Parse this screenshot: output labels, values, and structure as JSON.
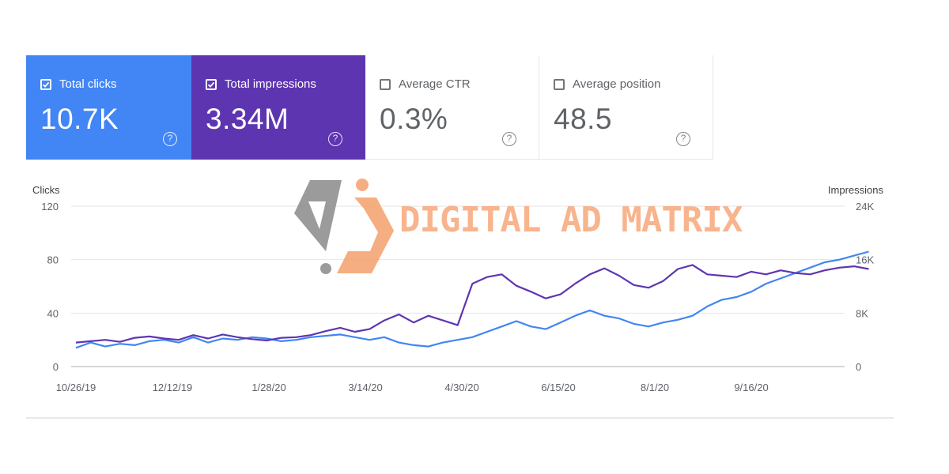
{
  "metrics": [
    {
      "label": "Total clicks",
      "value": "10.7K",
      "checked": true,
      "color": "#4285f4"
    },
    {
      "label": "Total impressions",
      "value": "3.34M",
      "checked": true,
      "color": "#5e35b1"
    },
    {
      "label": "Average CTR",
      "value": "0.3%",
      "checked": false
    },
    {
      "label": "Average position",
      "value": "48.5",
      "checked": false
    }
  ],
  "help_glyph": "?",
  "watermark": {
    "text": "DIGITAL AD MATRIX",
    "colors": {
      "gray": "#8a8a8a",
      "orange": "#f4a06c"
    }
  },
  "chart_data": {
    "type": "line",
    "y_left_title": "Clicks",
    "y_right_title": "Impressions",
    "y_left_ticks": [
      "0",
      "40",
      "80",
      "120"
    ],
    "y_right_ticks": [
      "0",
      "8K",
      "16K",
      "24K"
    ],
    "ylim_left": [
      0,
      120
    ],
    "ylim_right": [
      0,
      24000
    ],
    "x_tick_labels": [
      "10/26/19",
      "12/12/19",
      "1/28/20",
      "3/14/20",
      "4/30/20",
      "6/15/20",
      "8/1/20",
      "9/16/20"
    ],
    "x_range": [
      "2019-10-26",
      "2020-11-07"
    ],
    "grid": true,
    "series": [
      {
        "name": "Total clicks",
        "axis": "left",
        "color": "#4285f4",
        "points": [
          [
            "2019-10-26",
            14
          ],
          [
            "2019-11-02",
            18
          ],
          [
            "2019-11-09",
            15
          ],
          [
            "2019-11-16",
            17
          ],
          [
            "2019-11-23",
            16
          ],
          [
            "2019-11-30",
            19
          ],
          [
            "2019-12-07",
            20
          ],
          [
            "2019-12-14",
            18
          ],
          [
            "2019-12-21",
            22
          ],
          [
            "2019-12-28",
            18
          ],
          [
            "2020-01-04",
            21
          ],
          [
            "2020-01-11",
            20
          ],
          [
            "2020-01-18",
            22
          ],
          [
            "2020-01-25",
            21
          ],
          [
            "2020-02-01",
            19
          ],
          [
            "2020-02-08",
            20
          ],
          [
            "2020-02-15",
            22
          ],
          [
            "2020-02-22",
            23
          ],
          [
            "2020-02-29",
            24
          ],
          [
            "2020-03-07",
            22
          ],
          [
            "2020-03-14",
            20
          ],
          [
            "2020-03-21",
            22
          ],
          [
            "2020-03-28",
            18
          ],
          [
            "2020-04-04",
            16
          ],
          [
            "2020-04-11",
            15
          ],
          [
            "2020-04-18",
            18
          ],
          [
            "2020-04-25",
            20
          ],
          [
            "2020-05-02",
            22
          ],
          [
            "2020-05-09",
            26
          ],
          [
            "2020-05-16",
            30
          ],
          [
            "2020-05-23",
            34
          ],
          [
            "2020-05-30",
            30
          ],
          [
            "2020-06-06",
            28
          ],
          [
            "2020-06-13",
            33
          ],
          [
            "2020-06-20",
            38
          ],
          [
            "2020-06-27",
            42
          ],
          [
            "2020-07-04",
            38
          ],
          [
            "2020-07-11",
            36
          ],
          [
            "2020-07-18",
            32
          ],
          [
            "2020-07-25",
            30
          ],
          [
            "2020-08-01",
            33
          ],
          [
            "2020-08-08",
            35
          ],
          [
            "2020-08-15",
            38
          ],
          [
            "2020-08-22",
            45
          ],
          [
            "2020-08-29",
            50
          ],
          [
            "2020-09-05",
            52
          ],
          [
            "2020-09-12",
            56
          ],
          [
            "2020-09-19",
            62
          ],
          [
            "2020-09-26",
            66
          ],
          [
            "2020-10-03",
            70
          ],
          [
            "2020-10-10",
            74
          ],
          [
            "2020-10-17",
            78
          ],
          [
            "2020-10-24",
            80
          ],
          [
            "2020-10-31",
            83
          ],
          [
            "2020-11-07",
            86
          ]
        ]
      },
      {
        "name": "Total impressions",
        "axis": "right",
        "color": "#5e35b1",
        "points": [
          [
            "2019-10-26",
            3600
          ],
          [
            "2019-11-02",
            3800
          ],
          [
            "2019-11-09",
            4000
          ],
          [
            "2019-11-16",
            3700
          ],
          [
            "2019-11-23",
            4300
          ],
          [
            "2019-11-30",
            4500
          ],
          [
            "2019-12-07",
            4200
          ],
          [
            "2019-12-14",
            4000
          ],
          [
            "2019-12-21",
            4700
          ],
          [
            "2019-12-28",
            4200
          ],
          [
            "2020-01-04",
            4800
          ],
          [
            "2020-01-11",
            4400
          ],
          [
            "2020-01-18",
            4100
          ],
          [
            "2020-01-25",
            3900
          ],
          [
            "2020-02-01",
            4300
          ],
          [
            "2020-02-08",
            4400
          ],
          [
            "2020-02-15",
            4700
          ],
          [
            "2020-02-22",
            5300
          ],
          [
            "2020-02-29",
            5800
          ],
          [
            "2020-03-07",
            5200
          ],
          [
            "2020-03-14",
            5600
          ],
          [
            "2020-03-21",
            6900
          ],
          [
            "2020-03-28",
            7800
          ],
          [
            "2020-04-04",
            6600
          ],
          [
            "2020-04-11",
            7600
          ],
          [
            "2020-04-18",
            6900
          ],
          [
            "2020-04-25",
            6200
          ],
          [
            "2020-05-02",
            12400
          ],
          [
            "2020-05-09",
            13400
          ],
          [
            "2020-05-16",
            13800
          ],
          [
            "2020-05-23",
            12100
          ],
          [
            "2020-05-30",
            11200
          ],
          [
            "2020-06-06",
            10200
          ],
          [
            "2020-06-13",
            10800
          ],
          [
            "2020-06-20",
            12400
          ],
          [
            "2020-06-27",
            13800
          ],
          [
            "2020-07-04",
            14700
          ],
          [
            "2020-07-11",
            13600
          ],
          [
            "2020-07-18",
            12200
          ],
          [
            "2020-07-25",
            11800
          ],
          [
            "2020-08-01",
            12800
          ],
          [
            "2020-08-08",
            14600
          ],
          [
            "2020-08-15",
            15200
          ],
          [
            "2020-08-22",
            13800
          ],
          [
            "2020-08-29",
            13600
          ],
          [
            "2020-09-05",
            13400
          ],
          [
            "2020-09-12",
            14200
          ],
          [
            "2020-09-19",
            13800
          ],
          [
            "2020-09-26",
            14400
          ],
          [
            "2020-10-03",
            14000
          ],
          [
            "2020-10-10",
            13800
          ],
          [
            "2020-10-17",
            14400
          ],
          [
            "2020-10-24",
            14800
          ],
          [
            "2020-10-31",
            15000
          ],
          [
            "2020-11-07",
            14600
          ]
        ]
      }
    ]
  }
}
